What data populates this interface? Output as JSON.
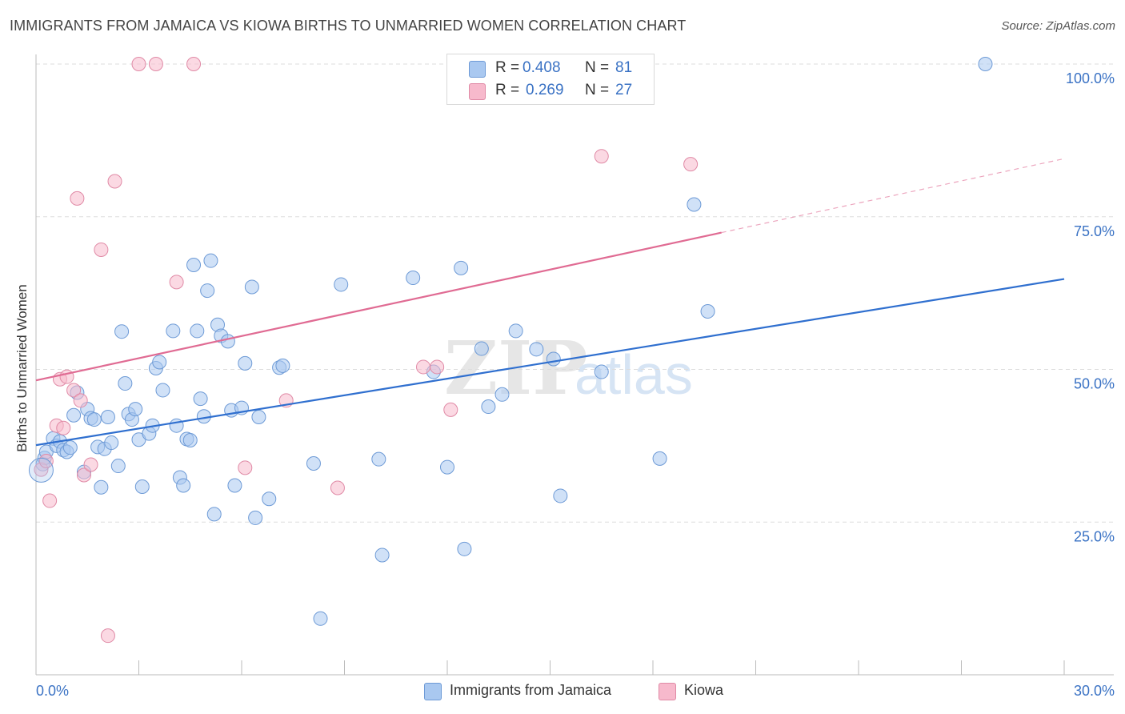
{
  "title": "IMMIGRANTS FROM JAMAICA VS KIOWA BIRTHS TO UNMARRIED WOMEN CORRELATION CHART",
  "source": "Source: ZipAtlas.com",
  "watermark": {
    "zip": "ZIP",
    "atlas": "atlas"
  },
  "legend": {
    "rows": [
      {
        "r_label": "R =",
        "r_value": "0.408",
        "n_label": "N =",
        "n_value": "81",
        "color": "#a9c8f0",
        "border": "#6d9ad6"
      },
      {
        "r_label": "R =",
        "r_value": "0.269",
        "n_label": "N =",
        "n_value": "27",
        "color": "#f7b9cc",
        "border": "#e08aa6"
      }
    ]
  },
  "bottom_legend": [
    {
      "label": "Immigrants from Jamaica",
      "color": "#a9c8f0",
      "border": "#6d9ad6"
    },
    {
      "label": "Kiowa",
      "color": "#f7b9cc",
      "border": "#e08aa6"
    }
  ],
  "chart_data": {
    "type": "scatter",
    "title": "IMMIGRANTS FROM JAMAICA VS KIOWA BIRTHS TO UNMARRIED WOMEN CORRELATION CHART",
    "xlabel": "",
    "ylabel": "Births to Unmarried Women",
    "xlim": [
      0,
      30
    ],
    "ylim": [
      0,
      100
    ],
    "x_tick_labels": [
      "0.0%",
      "30.0%"
    ],
    "y_tick_labels": [
      "25.0%",
      "50.0%",
      "75.0%",
      "100.0%"
    ],
    "y_ticks": [
      25,
      50,
      75,
      100
    ],
    "grid": "horizontal dashed",
    "legend_position": "top-center",
    "series": [
      {
        "name": "Immigrants from Jamaica",
        "color": "#a9c8f0",
        "edge": "#6d9ad6",
        "trend": {
          "x": [
            0,
            30
          ],
          "y": [
            37.6,
            64.8
          ],
          "color": "#2f6fcf",
          "dashed_from": null
        },
        "points": [
          [
            0.2,
            34.5
          ],
          [
            0.25,
            35.5
          ],
          [
            0.3,
            36.5
          ],
          [
            0.5,
            38.7
          ],
          [
            0.6,
            37.5
          ],
          [
            0.7,
            38.2
          ],
          [
            0.8,
            36.8
          ],
          [
            0.9,
            36.5
          ],
          [
            1.0,
            37.2
          ],
          [
            1.1,
            42.5
          ],
          [
            1.2,
            46.2
          ],
          [
            1.4,
            33.2
          ],
          [
            1.5,
            43.5
          ],
          [
            1.6,
            42
          ],
          [
            1.7,
            41.8
          ],
          [
            1.8,
            37.3
          ],
          [
            1.9,
            30.7
          ],
          [
            2.0,
            37
          ],
          [
            2.1,
            42.2
          ],
          [
            2.2,
            38
          ],
          [
            2.4,
            34.2
          ],
          [
            2.5,
            56.2
          ],
          [
            2.6,
            47.7
          ],
          [
            2.7,
            42.7
          ],
          [
            2.8,
            41.8
          ],
          [
            2.9,
            43.5
          ],
          [
            3.0,
            38.5
          ],
          [
            3.1,
            30.8
          ],
          [
            3.3,
            39.5
          ],
          [
            3.4,
            40.8
          ],
          [
            3.5,
            50.2
          ],
          [
            3.6,
            51.2
          ],
          [
            3.7,
            46.6
          ],
          [
            4.0,
            56.3
          ],
          [
            4.1,
            40.8
          ],
          [
            4.2,
            32.3
          ],
          [
            4.3,
            31
          ],
          [
            4.4,
            38.6
          ],
          [
            4.5,
            38.4
          ],
          [
            4.6,
            67.1
          ],
          [
            4.7,
            56.3
          ],
          [
            4.8,
            45.2
          ],
          [
            4.9,
            42.3
          ],
          [
            5.0,
            62.9
          ],
          [
            5.1,
            67.8
          ],
          [
            5.2,
            26.3
          ],
          [
            5.3,
            57.3
          ],
          [
            5.4,
            55.5
          ],
          [
            5.6,
            54.6
          ],
          [
            5.7,
            43.3
          ],
          [
            5.8,
            31
          ],
          [
            6.0,
            43.7
          ],
          [
            6.1,
            51
          ],
          [
            6.3,
            63.5
          ],
          [
            6.4,
            25.7
          ],
          [
            6.5,
            42.2
          ],
          [
            6.8,
            28.8
          ],
          [
            7.1,
            50.3
          ],
          [
            7.2,
            50.6
          ],
          [
            8.1,
            34.6
          ],
          [
            8.9,
            63.9
          ],
          [
            10.0,
            35.3
          ],
          [
            10.1,
            19.6
          ],
          [
            11.0,
            65
          ],
          [
            11.6,
            49.6
          ],
          [
            12.0,
            34
          ],
          [
            12.4,
            66.6
          ],
          [
            12.5,
            20.6
          ],
          [
            13.0,
            53.4
          ],
          [
            13.2,
            43.9
          ],
          [
            13.6,
            45.9
          ],
          [
            14.0,
            56.3
          ],
          [
            14.6,
            53.3
          ],
          [
            15.1,
            51.7
          ],
          [
            15.3,
            29.3
          ],
          [
            16.5,
            49.6
          ],
          [
            18.2,
            35.4
          ],
          [
            19.2,
            77
          ],
          [
            19.6,
            59.5
          ],
          [
            27.7,
            100
          ],
          [
            8.3,
            9.2
          ]
        ]
      },
      {
        "name": "Kiowa",
        "color": "#f7b9cc",
        "edge": "#e08aa6",
        "trend": {
          "x": [
            0,
            30
          ],
          "y": [
            48.2,
            84.5
          ],
          "color": "#e06b93",
          "dashed_from": 20
        },
        "points": [
          [
            0.15,
            33.6
          ],
          [
            0.3,
            35
          ],
          [
            0.4,
            28.5
          ],
          [
            0.6,
            40.8
          ],
          [
            0.7,
            48.4
          ],
          [
            0.8,
            40.4
          ],
          [
            0.9,
            48.8
          ],
          [
            1.1,
            46.6
          ],
          [
            1.2,
            78
          ],
          [
            1.3,
            44.9
          ],
          [
            1.4,
            32.7
          ],
          [
            1.6,
            34.4
          ],
          [
            1.9,
            69.6
          ],
          [
            2.1,
            6.4
          ],
          [
            2.3,
            80.8
          ],
          [
            3.0,
            100
          ],
          [
            3.5,
            100
          ],
          [
            4.1,
            64.3
          ],
          [
            4.6,
            100
          ],
          [
            6.1,
            33.9
          ],
          [
            7.3,
            44.9
          ],
          [
            8.8,
            30.6
          ],
          [
            11.3,
            50.4
          ],
          [
            11.7,
            50.4
          ],
          [
            12.1,
            43.4
          ],
          [
            16.5,
            84.9
          ],
          [
            19.1,
            83.6
          ]
        ]
      }
    ]
  }
}
